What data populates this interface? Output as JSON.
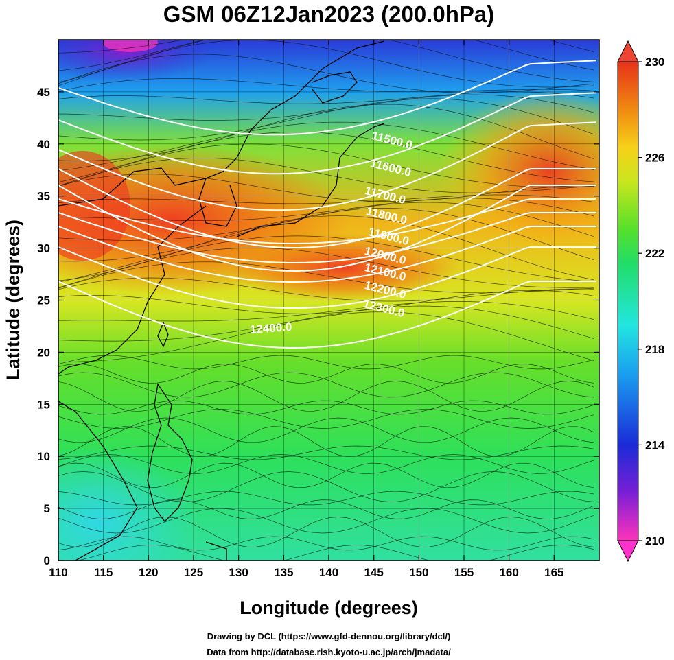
{
  "title": "GSM 06Z12Jan2023 (200.0hPa)",
  "xaxis": {
    "label": "Longitude (degrees)",
    "ticks": [
      "110",
      "115",
      "120",
      "125",
      "130",
      "135",
      "140",
      "145",
      "150",
      "155",
      "160",
      "165"
    ]
  },
  "yaxis": {
    "label": "Latitude  (degrees)",
    "ticks": [
      "0",
      "5",
      "10",
      "15",
      "20",
      "25",
      "30",
      "35",
      "40",
      "45"
    ]
  },
  "colorbar": {
    "ticks": [
      "210",
      "214",
      "218",
      "222",
      "226",
      "230"
    ],
    "colors": [
      "#ff33bb",
      "#7a1fd6",
      "#1a2bd8",
      "#1aa0f0",
      "#22e6e0",
      "#22dd66",
      "#55e02a",
      "#c8e61e",
      "#f7d11a",
      "#f08a10",
      "#e8321a"
    ]
  },
  "contours": {
    "labels": [
      "11500.0",
      "11600.0",
      "11700.0",
      "11800.0",
      "11900.0",
      "12000.0",
      "12100.0",
      "12200.0",
      "12300.0",
      "12400.0"
    ]
  },
  "credits": {
    "line1": "Drawing by DCL (https://www.gfd-dennou.org/library/dcl/)",
    "line2": "Data from http://database.rish.kyoto-u.ac.jp/arch/jmadata/"
  }
}
